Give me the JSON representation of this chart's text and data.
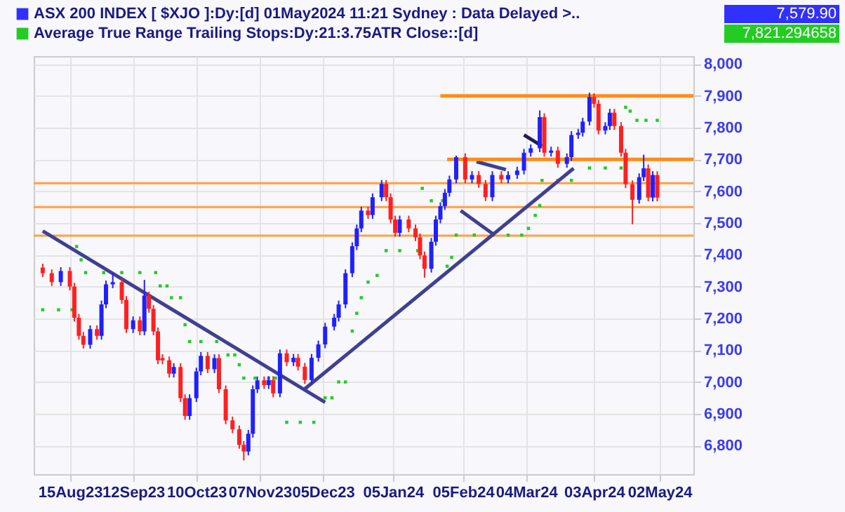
{
  "chart_data": {
    "type": "candlestick",
    "xlim": [
      "2023-07-30",
      "2024-05-17"
    ],
    "xticks": [
      {
        "value": "2023-08-15",
        "label": "15Aug23"
      },
      {
        "value": "2023-09-12",
        "label": "12Sep23"
      },
      {
        "value": "2023-10-10",
        "label": "10Oct23"
      },
      {
        "value": "2023-11-07",
        "label": "07Nov23"
      },
      {
        "value": "2023-12-05",
        "label": "05Dec23"
      },
      {
        "value": "2024-01-05",
        "label": "05Jan24"
      },
      {
        "value": "2024-02-05",
        "label": "05Feb24"
      },
      {
        "value": "2024-03-04",
        "label": "04Mar24"
      },
      {
        "value": "2024-04-03",
        "label": "03Apr24"
      },
      {
        "value": "2024-05-02",
        "label": "02May24"
      }
    ],
    "ylim": [
      6710,
      8025
    ],
    "yticks": [
      {
        "value": 6800,
        "label": "6,800"
      },
      {
        "value": 6900,
        "label": "6,900"
      },
      {
        "value": 7000,
        "label": "7,000"
      },
      {
        "value": 7100,
        "label": "7,100"
      },
      {
        "value": 7200,
        "label": "7,200"
      },
      {
        "value": 7300,
        "label": "7,300"
      },
      {
        "value": 7400,
        "label": "7,400"
      },
      {
        "value": 7500,
        "label": "7,500"
      },
      {
        "value": 7600,
        "label": "7,600"
      },
      {
        "value": 7700,
        "label": "7,700"
      },
      {
        "value": 7800,
        "label": "7,800"
      },
      {
        "value": 7900,
        "label": "7,900"
      },
      {
        "value": 8000,
        "label": "8,000"
      }
    ],
    "grid": true,
    "legend": "top left",
    "annotations": [
      "7,579.90",
      "7,821.294658"
    ],
    "ref_lines": [
      {
        "axis": "y",
        "value": 7625,
        "color": "#ffa040"
      },
      {
        "axis": "y",
        "value": 7550,
        "color": "#ffa040"
      },
      {
        "axis": "y",
        "value": 7460,
        "color": "#ffa040"
      }
    ],
    "series": [
      {
        "name": "ASX 200 INDEX [ $XJO ]:Dy:[d]  01May2024 11:21 Sydney : Data Delayed >..",
        "type": "candlestick",
        "color": "#3030ff",
        "x": [
          "2023-08-03",
          "2023-08-07",
          "2023-08-11",
          "2023-08-15",
          "2023-08-17",
          "2023-08-19",
          "2023-08-21",
          "2023-08-24",
          "2023-08-27",
          "2023-08-29",
          "2023-08-31",
          "2023-09-03",
          "2023-09-07",
          "2023-09-09",
          "2023-09-12",
          "2023-09-15",
          "2023-09-17",
          "2023-09-19",
          "2023-09-21",
          "2023-09-23",
          "2023-09-25",
          "2023-09-28",
          "2023-09-30",
          "2023-10-03",
          "2023-10-05",
          "2023-10-07",
          "2023-10-10",
          "2023-10-12",
          "2023-10-15",
          "2023-10-18",
          "2023-10-20",
          "2023-10-23",
          "2023-10-26",
          "2023-10-29",
          "2023-10-31",
          "2023-11-02",
          "2023-11-04",
          "2023-11-06",
          "2023-11-09",
          "2023-11-11",
          "2023-11-13",
          "2023-11-16",
          "2023-11-19",
          "2023-11-22",
          "2023-11-24",
          "2023-11-27",
          "2023-11-30",
          "2023-12-03",
          "2023-12-06",
          "2023-12-10",
          "2023-12-12",
          "2023-12-15",
          "2023-12-18",
          "2023-12-20",
          "2023-12-22",
          "2023-12-25",
          "2023-12-27",
          "2023-12-31",
          "2024-01-02",
          "2024-01-04",
          "2024-01-06",
          "2024-01-08",
          "2024-01-12",
          "2024-01-15",
          "2024-01-17",
          "2024-01-19",
          "2024-01-22",
          "2024-01-24",
          "2024-01-26",
          "2024-01-28",
          "2024-01-30",
          "2024-02-02",
          "2024-02-06",
          "2024-02-09",
          "2024-02-12",
          "2024-02-15",
          "2024-02-18",
          "2024-02-22",
          "2024-02-25",
          "2024-02-29",
          "2024-03-03",
          "2024-03-06",
          "2024-03-10",
          "2024-03-12",
          "2024-03-15",
          "2024-03-18",
          "2024-03-22",
          "2024-03-24",
          "2024-03-27",
          "2024-03-29",
          "2024-04-01",
          "2024-04-03",
          "2024-04-05",
          "2024-04-08",
          "2024-04-10",
          "2024-04-12",
          "2024-04-15",
          "2024-04-17",
          "2024-04-20",
          "2024-04-23",
          "2024-04-25",
          "2024-04-27",
          "2024-04-29",
          "2024-05-01"
        ],
        "ohlc": [
          [
            7360,
            7372,
            7330,
            7342
          ],
          [
            7342,
            7354,
            7302,
            7314
          ],
          [
            7314,
            7361,
            7302,
            7349
          ],
          [
            7349,
            7361,
            7288,
            7300
          ],
          [
            7300,
            7312,
            7190,
            7202
          ],
          [
            7202,
            7214,
            7133,
            7145
          ],
          [
            7145,
            7157,
            7105,
            7117
          ],
          [
            7117,
            7178,
            7105,
            7166
          ],
          [
            7166,
            7178,
            7133,
            7145
          ],
          [
            7145,
            7256,
            7133,
            7244
          ],
          [
            7244,
            7319,
            7232,
            7307
          ],
          [
            7307,
            7342,
            7295,
            7314
          ],
          [
            7314,
            7326,
            7246,
            7258
          ],
          [
            7258,
            7270,
            7154,
            7166
          ],
          [
            7166,
            7206,
            7154,
            7194
          ],
          [
            7194,
            7206,
            7147,
            7159
          ],
          [
            7159,
            7321,
            7147,
            7272
          ],
          [
            7272,
            7284,
            7218,
            7230
          ],
          [
            7230,
            7242,
            7147,
            7159
          ],
          [
            7159,
            7171,
            7056,
            7068
          ],
          [
            7075,
            7087,
            7056,
            7068
          ],
          [
            7068,
            7080,
            7014,
            7026
          ],
          [
            7026,
            7059,
            7014,
            7047
          ],
          [
            7047,
            7059,
            6937,
            6949
          ],
          [
            6949,
            6961,
            6881,
            6893
          ],
          [
            6893,
            6961,
            6881,
            6949
          ],
          [
            6949,
            7045,
            6937,
            7033
          ],
          [
            7033,
            7094,
            7021,
            7082
          ],
          [
            7082,
            7094,
            7028,
            7040
          ],
          [
            7040,
            7087,
            7028,
            7075
          ],
          [
            7075,
            7087,
            6965,
            6977
          ],
          [
            6977,
            6989,
            6867,
            6879
          ],
          [
            6879,
            6891,
            6839,
            6851
          ],
          [
            6851,
            6863,
            6790,
            6802
          ],
          [
            6802,
            6814,
            6753,
            6781
          ],
          [
            6781,
            6849,
            6769,
            6837
          ],
          [
            6837,
            6989,
            6825,
            6977
          ],
          [
            6977,
            7017,
            6965,
            7005
          ],
          [
            7005,
            7017,
            6978,
            6990
          ],
          [
            6990,
            7018,
            6978,
            7006
          ],
          [
            7006,
            7018,
            6952,
            6964
          ],
          [
            6964,
            7102,
            6952,
            7090
          ],
          [
            7090,
            7102,
            7050,
            7062
          ],
          [
            7062,
            7088,
            7050,
            7076
          ],
          [
            7076,
            7088,
            7036,
            7048
          ],
          [
            7048,
            7060,
            6994,
            7006
          ],
          [
            7006,
            7088,
            6994,
            7076
          ],
          [
            7076,
            7130,
            7064,
            7118
          ],
          [
            7118,
            7186,
            7106,
            7174
          ],
          [
            7174,
            7214,
            7162,
            7202
          ],
          [
            7202,
            7256,
            7190,
            7244
          ],
          [
            7244,
            7354,
            7232,
            7342
          ],
          [
            7342,
            7439,
            7330,
            7427
          ],
          [
            7427,
            7495,
            7415,
            7483
          ],
          [
            7483,
            7551,
            7471,
            7539
          ],
          [
            7539,
            7551,
            7513,
            7525
          ],
          [
            7525,
            7593,
            7513,
            7581
          ],
          [
            7581,
            7635,
            7569,
            7623
          ],
          [
            7623,
            7635,
            7569,
            7581
          ],
          [
            7581,
            7593,
            7499,
            7511
          ],
          [
            7511,
            7523,
            7457,
            7469
          ],
          [
            7469,
            7523,
            7457,
            7511
          ],
          [
            7511,
            7523,
            7471,
            7483
          ],
          [
            7483,
            7495,
            7443,
            7455
          ],
          [
            7455,
            7467,
            7386,
            7398
          ],
          [
            7398,
            7410,
            7328,
            7356
          ],
          [
            7356,
            7453,
            7344,
            7441
          ],
          [
            7441,
            7523,
            7429,
            7511
          ],
          [
            7511,
            7565,
            7499,
            7553
          ],
          [
            7553,
            7607,
            7541,
            7595
          ],
          [
            7595,
            7649,
            7583,
            7637
          ],
          [
            7637,
            7712,
            7625,
            7707
          ],
          [
            7707,
            7719,
            7625,
            7637
          ],
          [
            7637,
            7663,
            7625,
            7651
          ],
          [
            7651,
            7663,
            7611,
            7623
          ],
          [
            7623,
            7635,
            7569,
            7581
          ],
          [
            7581,
            7663,
            7569,
            7651
          ],
          [
            7651,
            7663,
            7625,
            7637
          ],
          [
            7637,
            7663,
            7625,
            7651
          ],
          [
            7651,
            7677,
            7639,
            7665
          ],
          [
            7665,
            7733,
            7653,
            7721
          ],
          [
            7721,
            7747,
            7709,
            7735
          ],
          [
            7735,
            7854,
            7723,
            7833
          ],
          [
            7833,
            7845,
            7709,
            7721
          ],
          [
            7721,
            7740,
            7709,
            7728
          ],
          [
            7728,
            7740,
            7674,
            7686
          ],
          [
            7686,
            7719,
            7674,
            7707
          ],
          [
            7707,
            7789,
            7695,
            7777
          ],
          [
            7777,
            7796,
            7765,
            7784
          ],
          [
            7784,
            7831,
            7772,
            7819
          ],
          [
            7819,
            7910,
            7807,
            7896
          ],
          [
            7896,
            7908,
            7863,
            7875
          ],
          [
            7875,
            7887,
            7779,
            7791
          ],
          [
            7791,
            7817,
            7779,
            7805
          ],
          [
            7805,
            7859,
            7793,
            7847
          ],
          [
            7847,
            7859,
            7793,
            7805
          ],
          [
            7805,
            7817,
            7709,
            7721
          ],
          [
            7721,
            7733,
            7610,
            7622
          ],
          [
            7622,
            7634,
            7496,
            7573
          ],
          [
            7573,
            7656,
            7561,
            7644
          ],
          [
            7644,
            7715,
            7632,
            7672
          ],
          [
            7672,
            7684,
            7568,
            7580
          ],
          [
            7580,
            7663,
            7568,
            7651
          ],
          [
            7651,
            7663,
            7568,
            7580
          ]
        ],
        "colors": [
          "#ff2020",
          "#ff2020",
          "#2020ff",
          "#ff2020",
          "#ff2020",
          "#ff2020",
          "#ff2020",
          "#2020ff",
          "#ff2020",
          "#2020ff",
          "#2020ff",
          "#2020ff",
          "#ff2020",
          "#ff2020",
          "#2020ff",
          "#ff2020",
          "#2020ff",
          "#ff2020",
          "#ff2020",
          "#ff2020",
          "#ff2020",
          "#ff2020",
          "#2020ff",
          "#ff2020",
          "#ff2020",
          "#2020ff",
          "#2020ff",
          "#2020ff",
          "#ff2020",
          "#2020ff",
          "#ff2020",
          "#ff2020",
          "#ff2020",
          "#ff2020",
          "#ff2020",
          "#2020ff",
          "#2020ff",
          "#2020ff",
          "#ff2020",
          "#2020ff",
          "#ff2020",
          "#2020ff",
          "#ff2020",
          "#2020ff",
          "#ff2020",
          "#ff2020",
          "#2020ff",
          "#2020ff",
          "#2020ff",
          "#2020ff",
          "#2020ff",
          "#2020ff",
          "#2020ff",
          "#2020ff",
          "#2020ff",
          "#ff2020",
          "#2020ff",
          "#2020ff",
          "#ff2020",
          "#ff2020",
          "#ff2020",
          "#2020ff",
          "#ff2020",
          "#ff2020",
          "#ff2020",
          "#ff2020",
          "#2020ff",
          "#2020ff",
          "#2020ff",
          "#2020ff",
          "#2020ff",
          "#2020ff",
          "#ff2020",
          "#2020ff",
          "#ff2020",
          "#ff2020",
          "#2020ff",
          "#ff2020",
          "#2020ff",
          "#2020ff",
          "#2020ff",
          "#2020ff",
          "#2020ff",
          "#ff2020",
          "#2020ff",
          "#ff2020",
          "#2020ff",
          "#2020ff",
          "#2020ff",
          "#2020ff",
          "#2020ff",
          "#ff2020",
          "#ff2020",
          "#2020ff",
          "#2020ff",
          "#ff2020",
          "#ff2020",
          "#ff2020",
          "#ff2020",
          "#2020ff",
          "#2020ff",
          "#ff2020",
          "#2020ff",
          "#ff2020"
        ]
      },
      {
        "name": "Average True Range Trailing Stops:Dy:21:3.75ATR Close::[d]",
        "type": "scatter",
        "color": "#22cc22",
        "marker": "square",
        "x": [
          "2023-08-03",
          "2023-08-10",
          "2023-08-16",
          "2023-08-18",
          "2023-08-20",
          "2023-08-22",
          "2023-08-30",
          "2023-09-07",
          "2023-09-15",
          "2023-09-22",
          "2023-09-24",
          "2023-09-27",
          "2023-09-29",
          "2023-10-03",
          "2023-10-05",
          "2023-10-07",
          "2023-10-12",
          "2023-10-19",
          "2023-10-24",
          "2023-10-27",
          "2023-10-29",
          "2023-10-31",
          "2023-11-05",
          "2023-11-11",
          "2023-11-14",
          "2023-11-19",
          "2023-11-25",
          "2023-12-01",
          "2023-12-06",
          "2023-12-09",
          "2023-12-12",
          "2023-12-15",
          "2023-12-18",
          "2023-12-20",
          "2023-12-22",
          "2023-12-25",
          "2023-12-29",
          "2024-01-02",
          "2024-01-08",
          "2024-01-16",
          "2024-01-18",
          "2024-01-22",
          "2024-01-27",
          "2024-01-29",
          "2024-01-31",
          "2024-02-02",
          "2024-02-10",
          "2024-02-18",
          "2024-02-25",
          "2024-03-02",
          "2024-03-05",
          "2024-03-08",
          "2024-03-10",
          "2024-03-11",
          "2024-03-18",
          "2024-03-24",
          "2024-04-01",
          "2024-04-08",
          "2024-04-15",
          "2024-04-17",
          "2024-04-19",
          "2024-04-22",
          "2024-04-26",
          "2024-05-01"
        ],
        "values": [
          7227,
          7227,
          7227,
          7426,
          7384,
          7344,
          7344,
          7344,
          7344,
          7344,
          7302,
          7302,
          7265,
          7265,
          7180,
          7127,
          7127,
          7127,
          7085,
          7085,
          7054,
          7012,
          7012,
          7012,
          7012,
          6873,
          6873,
          6873,
          6950,
          6950,
          7000,
          7000,
          7160,
          7216,
          7265,
          7314,
          7335,
          7413,
          7413,
          7413,
          7609,
          7570,
          7570,
          7364,
          7392,
          7462,
          7462,
          7462,
          7462,
          7462,
          7483,
          7524,
          7555,
          7634,
          7634,
          7634,
          7673,
          7673,
          7673,
          7864,
          7852,
          7823,
          7823,
          7823
        ]
      },
      {
        "type": "line",
        "color": "#404090",
        "x": [
          "2023-08-03",
          "2023-12-06"
        ],
        "values": [
          7475,
          6936
        ]
      },
      {
        "type": "line",
        "color": "#404090",
        "x": [
          "2023-11-27",
          "2024-03-25"
        ],
        "values": [
          6978,
          7672
        ]
      },
      {
        "type": "line",
        "color": "#404090",
        "x": [
          "2024-02-04",
          "2024-02-19"
        ],
        "values": [
          7539,
          7462
        ]
      },
      {
        "type": "line",
        "color": "#404090",
        "x": [
          "2024-02-11",
          "2024-02-24"
        ],
        "values": [
          7693,
          7668
        ]
      },
      {
        "type": "line",
        "color": "#202050",
        "x": [
          "2024-03-03",
          "2024-03-11"
        ],
        "values": [
          7777,
          7742
        ]
      },
      {
        "type": "line",
        "color": "#ff8c1a",
        "x": [
          "2024-01-26",
          "2024-05-17"
        ],
        "values": [
          7900,
          7900
        ]
      },
      {
        "type": "line",
        "color": "#ff8c1a",
        "x": [
          "2024-01-29",
          "2024-05-17"
        ],
        "values": [
          7700,
          7700
        ]
      }
    ]
  }
}
